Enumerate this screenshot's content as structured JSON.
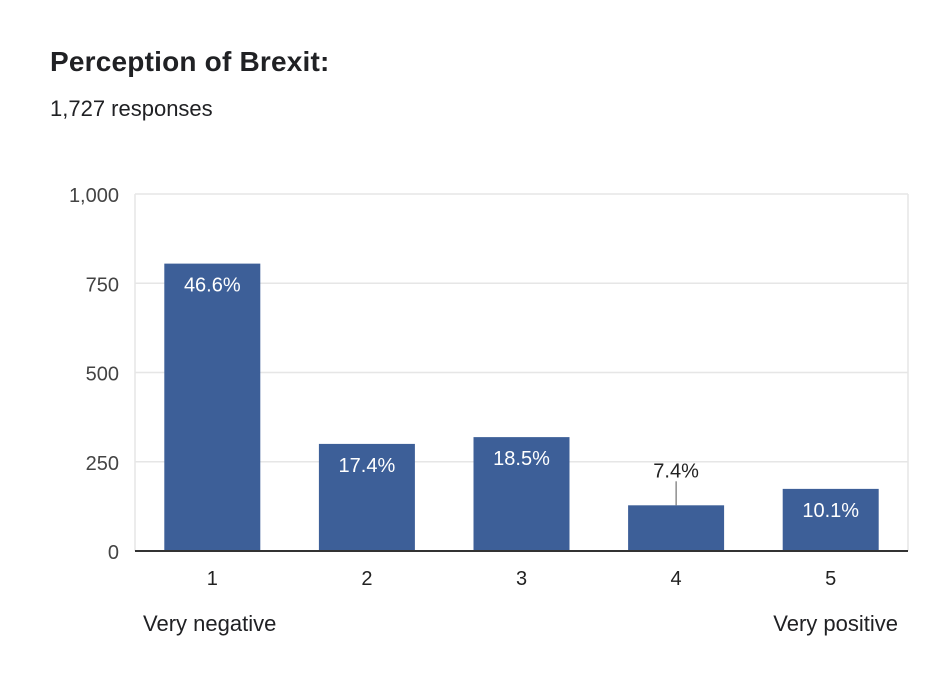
{
  "header": {
    "title": "Perception of Brexit:",
    "responses": "1,727 responses"
  },
  "scale": {
    "low_label": "Very negative",
    "high_label": "Very positive"
  },
  "colors": {
    "bar": "#3d5f98",
    "grid": "#e6e6e6",
    "axis": "#333333"
  },
  "chart_data": {
    "type": "bar",
    "categories": [
      "1",
      "2",
      "3",
      "4",
      "5"
    ],
    "values": [
      805,
      300,
      319,
      128,
      174
    ],
    "percent_labels": [
      "46.6%",
      "17.4%",
      "18.5%",
      "7.4%",
      "10.1%"
    ],
    "ylim": [
      0,
      1000
    ],
    "yticks": [
      0,
      250,
      500,
      750,
      1000
    ],
    "ytick_labels": [
      "0",
      "250",
      "500",
      "750",
      "1,000"
    ],
    "grid": true
  }
}
